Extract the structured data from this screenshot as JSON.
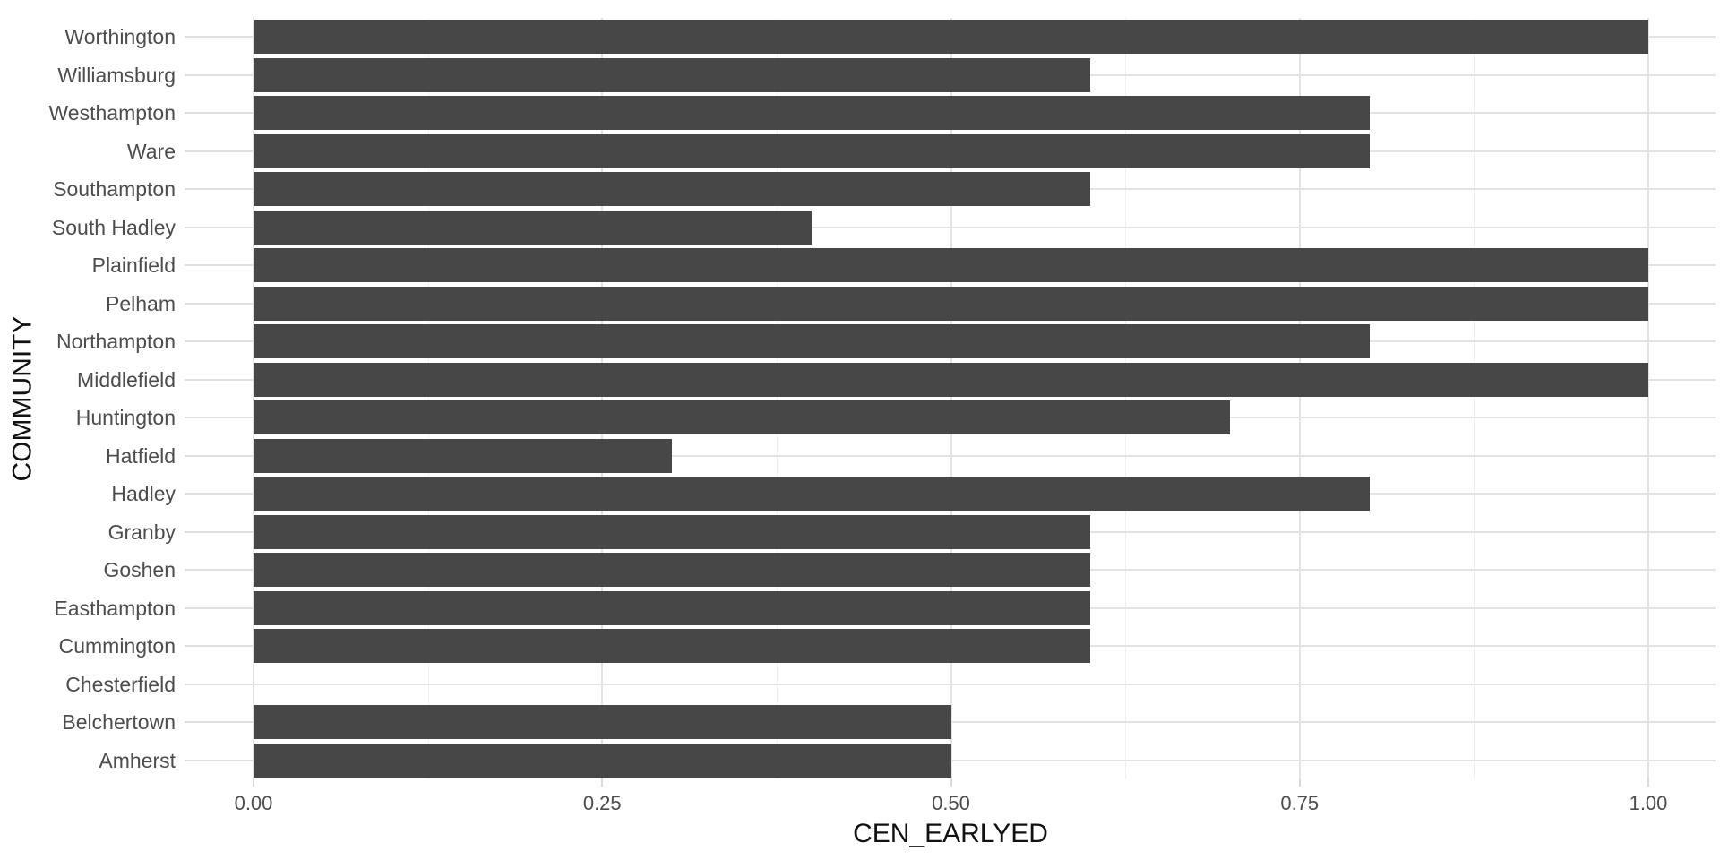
{
  "chart_data": {
    "type": "bar",
    "orientation": "horizontal",
    "title": "",
    "xlabel": "CEN_EARLYED",
    "ylabel": "COMMUNITY",
    "xlim": [
      0,
      1
    ],
    "x_ticks": {
      "values": [
        0,
        0.25,
        0.5,
        0.75,
        1.0
      ],
      "labels": [
        "0.00",
        "0.25",
        "0.50",
        "0.75",
        "1.00"
      ]
    },
    "x_minor_gridlines": [
      0.125,
      0.375,
      0.625,
      0.875
    ],
    "grid": "vertical major+minor, horizontal major per category, no panel border",
    "legend": "none",
    "categories": [
      "Worthington",
      "Williamsburg",
      "Westhampton",
      "Ware",
      "Southampton",
      "South Hadley",
      "Plainfield",
      "Pelham",
      "Northampton",
      "Middlefield",
      "Huntington",
      "Hatfield",
      "Hadley",
      "Granby",
      "Goshen",
      "Easthampton",
      "Cummington",
      "Chesterfield",
      "Belchertown",
      "Amherst"
    ],
    "values": [
      1.0,
      0.6,
      0.8,
      0.8,
      0.6,
      0.4,
      1.0,
      1.0,
      0.8,
      1.0,
      0.7,
      0.3,
      0.8,
      0.6,
      0.6,
      0.6,
      0.6,
      0.0,
      0.5,
      0.5
    ],
    "colors": {
      "bar": "#474747",
      "grid_major": "#e3e3e3",
      "grid_minor": "#f0f0f0",
      "axis_tick_line": "#e0e0e0",
      "axis_tick_mark": "#d9d9d9",
      "tick_label": "#4d4d4d",
      "axis_title": "#111111",
      "background": "#ffffff"
    }
  }
}
